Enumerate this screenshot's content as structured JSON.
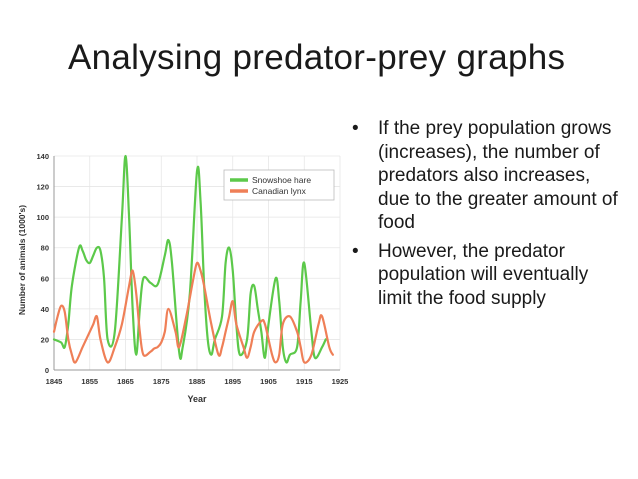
{
  "slide": {
    "title": "Analysing predator-prey graphs",
    "bullets": [
      "If the prey population grows (increases), the number of predators also increases, due to the greater amount of food",
      "However, the predator population will eventually limit the food supply"
    ],
    "bullet_symbol": "•"
  },
  "chart_data": {
    "type": "line",
    "title": "",
    "xlabel": "Year",
    "ylabel": "Number of animals (1000's)",
    "xlim": [
      1845,
      1925
    ],
    "ylim": [
      0,
      140
    ],
    "xticks": [
      "1845",
      "1855",
      "1865",
      "1875",
      "1885",
      "1895",
      "1905",
      "1915",
      "1925"
    ],
    "yticks": [
      "0",
      "20",
      "40",
      "60",
      "80",
      "100",
      "120",
      "140"
    ],
    "legend_position": "top-right",
    "grid": true,
    "series": [
      {
        "name": "Snowshoe hare",
        "color": "#5cc94a",
        "x": [
          1845,
          1847,
          1848,
          1849,
          1850,
          1852,
          1853,
          1854,
          1855,
          1856,
          1857,
          1858,
          1859,
          1860,
          1862,
          1864,
          1865,
          1866,
          1867,
          1868,
          1869,
          1870,
          1872,
          1874,
          1876,
          1877,
          1878,
          1880,
          1881,
          1883,
          1885,
          1886,
          1887,
          1888,
          1889,
          1890,
          1892,
          1893,
          1894,
          1895,
          1896,
          1897,
          1899,
          1900,
          1901,
          1902,
          1903,
          1904,
          1905,
          1907,
          1908,
          1909,
          1910,
          1911,
          1913,
          1914,
          1915,
          1917,
          1918,
          1920,
          1921
        ],
        "y": [
          20,
          18,
          15,
          30,
          55,
          80,
          78,
          72,
          70,
          75,
          80,
          78,
          60,
          20,
          25,
          100,
          140,
          100,
          40,
          10,
          40,
          60,
          57,
          56,
          75,
          85,
          70,
          12,
          15,
          50,
          130,
          110,
          55,
          20,
          10,
          20,
          35,
          70,
          80,
          65,
          30,
          10,
          20,
          50,
          55,
          40,
          25,
          8,
          30,
          60,
          45,
          15,
          5,
          10,
          15,
          45,
          70,
          25,
          8,
          15,
          20
        ]
      },
      {
        "name": "Canadian lynx",
        "color": "#ef7f57",
        "x": [
          1845,
          1846,
          1847,
          1848,
          1849,
          1850,
          1851,
          1853,
          1855,
          1856,
          1857,
          1858,
          1860,
          1862,
          1864,
          1866,
          1867,
          1868,
          1869,
          1870,
          1872,
          1873,
          1874,
          1875,
          1876,
          1877,
          1879,
          1880,
          1882,
          1884,
          1885,
          1886,
          1887,
          1889,
          1891,
          1892,
          1893,
          1894,
          1895,
          1896,
          1898,
          1899,
          1900,
          1901,
          1903,
          1904,
          1906,
          1907,
          1908,
          1909,
          1911,
          1913,
          1914,
          1915,
          1917,
          1919,
          1920,
          1922,
          1923
        ],
        "y": [
          25,
          35,
          42,
          38,
          20,
          10,
          5,
          15,
          25,
          30,
          35,
          20,
          5,
          15,
          30,
          55,
          65,
          50,
          25,
          10,
          12,
          14,
          15,
          18,
          25,
          40,
          25,
          15,
          35,
          60,
          70,
          65,
          55,
          30,
          10,
          15,
          25,
          35,
          45,
          30,
          15,
          8,
          15,
          25,
          32,
          30,
          10,
          5,
          10,
          30,
          35,
          25,
          15,
          5,
          10,
          30,
          35,
          15,
          10
        ]
      }
    ]
  }
}
